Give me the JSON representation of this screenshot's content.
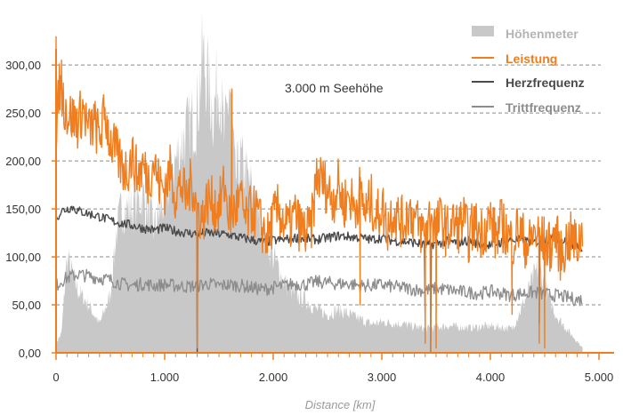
{
  "chart_data": {
    "type": "line",
    "title": "",
    "xlabel": "Distance [km]",
    "ylabel": "",
    "xlim": [
      0,
      5000
    ],
    "ylim": [
      0,
      340
    ],
    "grid": "horizontal dashed",
    "legend_position": "top-right",
    "annotation": "3.000 m Seehöhe",
    "y_ticks": [
      "0,00",
      "50,00",
      "100,00",
      "150,00",
      "200,00",
      "250,00",
      "300,00"
    ],
    "y_tick_values": [
      0,
      50,
      100,
      150,
      200,
      250,
      300
    ],
    "x_ticks": [
      "0",
      "1.000",
      "2.000",
      "3.000",
      "4.000",
      "5.000"
    ],
    "x_tick_values": [
      0,
      1000,
      2000,
      3000,
      4000,
      5000
    ],
    "colors": {
      "elevation": "#c8c8c8",
      "power": "#f07d1e",
      "heart": "#4a4a4a",
      "cadence": "#8c8c8c",
      "axis": "#f07d1e",
      "grid": "#8a8a8a"
    },
    "series": [
      {
        "name": "Höhenmeter",
        "kind": "area",
        "x": [
          0,
          50,
          100,
          200,
          300,
          400,
          500,
          550,
          600,
          700,
          800,
          900,
          1000,
          1100,
          1200,
          1300,
          1350,
          1400,
          1450,
          1500,
          1550,
          1600,
          1650,
          1700,
          1800,
          1900,
          2000,
          2100,
          2200,
          2300,
          2400,
          2500,
          2600,
          2700,
          2800,
          2900,
          3000,
          3200,
          3400,
          3600,
          3800,
          4000,
          4200,
          4300,
          4400,
          4450,
          4500,
          4600,
          4700,
          4800,
          4850
        ],
        "values": [
          10,
          20,
          100,
          65,
          50,
          30,
          60,
          120,
          150,
          150,
          165,
          130,
          160,
          200,
          230,
          250,
          310,
          280,
          250,
          290,
          220,
          280,
          180,
          200,
          170,
          130,
          100,
          75,
          60,
          55,
          45,
          40,
          45,
          40,
          35,
          30,
          32,
          30,
          25,
          28,
          26,
          28,
          25,
          50,
          80,
          90,
          70,
          40,
          25,
          12,
          5
        ]
      },
      {
        "name": "Leistung",
        "kind": "line",
        "x": [
          0,
          25,
          50,
          100,
          150,
          200,
          250,
          300,
          350,
          400,
          450,
          500,
          550,
          600,
          650,
          700,
          750,
          800,
          850,
          900,
          950,
          1000,
          1050,
          1100,
          1150,
          1200,
          1250,
          1300,
          1350,
          1400,
          1450,
          1500,
          1550,
          1600,
          1650,
          1700,
          1750,
          1800,
          1850,
          1900,
          1950,
          2000,
          2050,
          2100,
          2150,
          2200,
          2250,
          2300,
          2350,
          2400,
          2450,
          2500,
          2550,
          2600,
          2650,
          2700,
          2750,
          2800,
          2850,
          2900,
          2950,
          3000,
          3050,
          3100,
          3150,
          3200,
          3250,
          3300,
          3350,
          3400,
          3450,
          3500,
          3550,
          3600,
          3650,
          3700,
          3750,
          3800,
          3850,
          3900,
          3950,
          4000,
          4050,
          4100,
          4150,
          4200,
          4250,
          4300,
          4350,
          4400,
          4450,
          4500,
          4550,
          4600,
          4650,
          4700,
          4750,
          4800,
          4850
        ],
        "values": [
          200,
          280,
          270,
          250,
          245,
          240,
          255,
          230,
          240,
          225,
          250,
          220,
          210,
          195,
          190,
          205,
          185,
          195,
          180,
          200,
          175,
          170,
          190,
          165,
          175,
          160,
          180,
          150,
          140,
          160,
          155,
          150,
          175,
          140,
          150,
          160,
          135,
          150,
          145,
          130,
          120,
          140,
          150,
          135,
          130,
          145,
          130,
          125,
          130,
          185,
          180,
          170,
          160,
          175,
          155,
          165,
          150,
          170,
          145,
          160,
          140,
          155,
          130,
          150,
          140,
          135,
          150,
          140,
          130,
          125,
          145,
          130,
          140,
          125,
          135,
          130,
          140,
          120,
          135,
          125,
          130,
          140,
          120,
          135,
          125,
          115,
          130,
          120,
          110,
          125,
          120,
          115,
          110,
          125,
          100,
          115,
          120,
          110,
          130
        ]
      },
      {
        "name": "Herzfrequenz",
        "kind": "line",
        "x": [
          0,
          50,
          100,
          150,
          200,
          300,
          400,
          500,
          600,
          700,
          800,
          900,
          1000,
          1100,
          1200,
          1300,
          1400,
          1500,
          1600,
          1700,
          1800,
          1900,
          2000,
          2100,
          2200,
          2300,
          2400,
          2500,
          2600,
          2700,
          2800,
          2900,
          3000,
          3100,
          3200,
          3300,
          3400,
          3500,
          3600,
          3700,
          3800,
          3900,
          4000,
          4100,
          4200,
          4300,
          4400,
          4500,
          4600,
          4700,
          4800,
          4850
        ],
        "values": [
          140,
          148,
          150,
          152,
          148,
          145,
          142,
          138,
          135,
          133,
          130,
          128,
          130,
          127,
          125,
          124,
          125,
          124,
          123,
          120,
          118,
          115,
          117,
          118,
          120,
          119,
          118,
          120,
          122,
          121,
          120,
          118,
          120,
          117,
          116,
          115,
          112,
          114,
          116,
          115,
          117,
          113,
          112,
          115,
          118,
          117,
          115,
          118,
          120,
          115,
          112,
          110
        ]
      },
      {
        "name": "Trittfrequenz",
        "kind": "line",
        "x": [
          0,
          50,
          100,
          150,
          200,
          300,
          400,
          500,
          600,
          700,
          800,
          900,
          1000,
          1100,
          1200,
          1300,
          1400,
          1500,
          1600,
          1700,
          1800,
          1900,
          2000,
          2100,
          2200,
          2300,
          2400,
          2500,
          2600,
          2700,
          2800,
          2900,
          3000,
          3100,
          3200,
          3300,
          3400,
          3500,
          3600,
          3700,
          3800,
          3900,
          4000,
          4100,
          4200,
          4300,
          4400,
          4500,
          4600,
          4700,
          4800,
          4850
        ],
        "values": [
          70,
          75,
          78,
          80,
          82,
          80,
          78,
          76,
          72,
          70,
          72,
          70,
          71,
          70,
          69,
          70,
          72,
          70,
          71,
          70,
          68,
          66,
          68,
          70,
          72,
          71,
          74,
          73,
          72,
          72,
          70,
          70,
          71,
          69,
          68,
          66,
          65,
          67,
          66,
          64,
          63,
          62,
          64,
          62,
          60,
          62,
          63,
          61,
          60,
          58,
          55,
          56
        ]
      }
    ],
    "spikes": {
      "power_low": [
        [
          0,
          30
        ],
        [
          1300,
          5
        ],
        [
          2800,
          50
        ],
        [
          3400,
          10
        ],
        [
          3450,
          0
        ],
        [
          3500,
          5
        ],
        [
          4450,
          10
        ],
        [
          4500,
          5
        ],
        [
          4200,
          40
        ]
      ],
      "heart_low": [
        [
          1300,
          0
        ],
        [
          3400,
          30
        ],
        [
          3450,
          0
        ],
        [
          4450,
          30
        ]
      ],
      "power_high": [
        [
          0,
          330
        ],
        [
          50,
          305
        ],
        [
          1620,
          275
        ]
      ]
    }
  }
}
